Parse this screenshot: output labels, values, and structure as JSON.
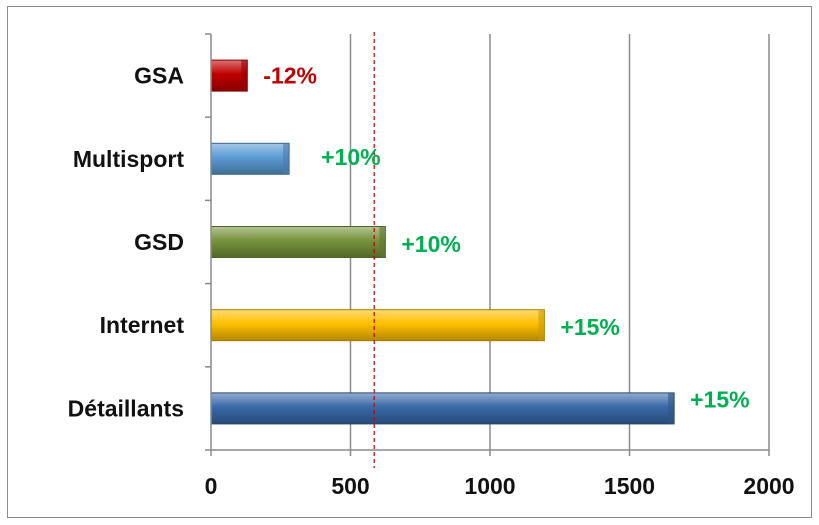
{
  "chart_data": {
    "type": "bar",
    "orientation": "horizontal",
    "categories": [
      "GSA",
      "Multisport",
      "GSD",
      "Internet",
      "Détaillants"
    ],
    "values": [
      130,
      280,
      625,
      1195,
      1660
    ],
    "bar_colors": [
      "#c00000",
      "#5b9bd5",
      "#77933c",
      "#ffc000",
      "#3a6aa8"
    ],
    "data_labels": [
      "-12%",
      "+10%",
      "+10%",
      "+15%",
      "+15%"
    ],
    "data_label_colors": [
      "#c00000",
      "#00b050",
      "#00b050",
      "#00b050",
      "#00b050"
    ],
    "xlim": [
      0,
      2000
    ],
    "x_ticks": [
      0,
      500,
      1000,
      1500,
      2000
    ],
    "x_tick_labels": [
      "0",
      "500",
      "1000",
      "1500",
      "2000"
    ],
    "reference_line": {
      "value": 585,
      "style": "dashed",
      "color": "#c00000"
    },
    "grid": "vertical",
    "title": "",
    "xlabel": "",
    "ylabel": ""
  }
}
